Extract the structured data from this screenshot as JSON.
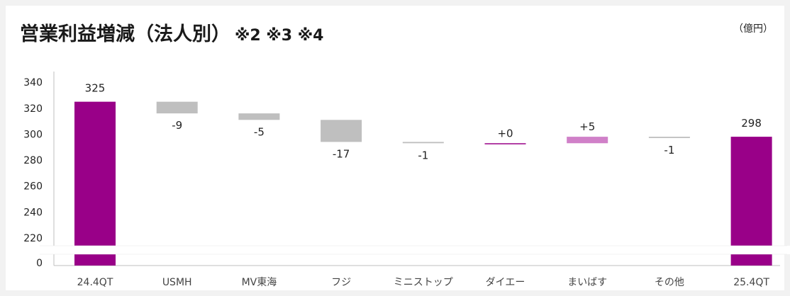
{
  "title": "営業利益増減（法人別）",
  "title_notes": "※2 ※3 ※4",
  "unit": "（億円）",
  "colors": {
    "total": "#990088",
    "negative": "#bfbfbf",
    "positive": "#d080c8",
    "axis": "#bfbfbf",
    "text": "#222222"
  },
  "chart_data": {
    "type": "bar",
    "subtype": "waterfall",
    "categories": [
      "24.4QT",
      "USMH",
      "MV東海",
      "フジ",
      "ミニストップ",
      "ダイエー",
      "まいばす",
      "その他",
      "25.4QT"
    ],
    "values": [
      325,
      -9,
      -5,
      -17,
      -1,
      0,
      5,
      -1,
      298
    ],
    "data_labels": [
      "325",
      "-9",
      "-5",
      "-17",
      "-1",
      "+0",
      "+5",
      "-1",
      "298"
    ],
    "kinds": [
      "total",
      "delta",
      "delta",
      "delta",
      "delta",
      "delta",
      "delta",
      "delta",
      "total"
    ],
    "y_ticks": [
      "0",
      "220",
      "240",
      "260",
      "280",
      "300",
      "320",
      "340"
    ],
    "ylim": [
      210,
      345
    ],
    "axis_break": true,
    "grid": false,
    "legend": "none"
  }
}
